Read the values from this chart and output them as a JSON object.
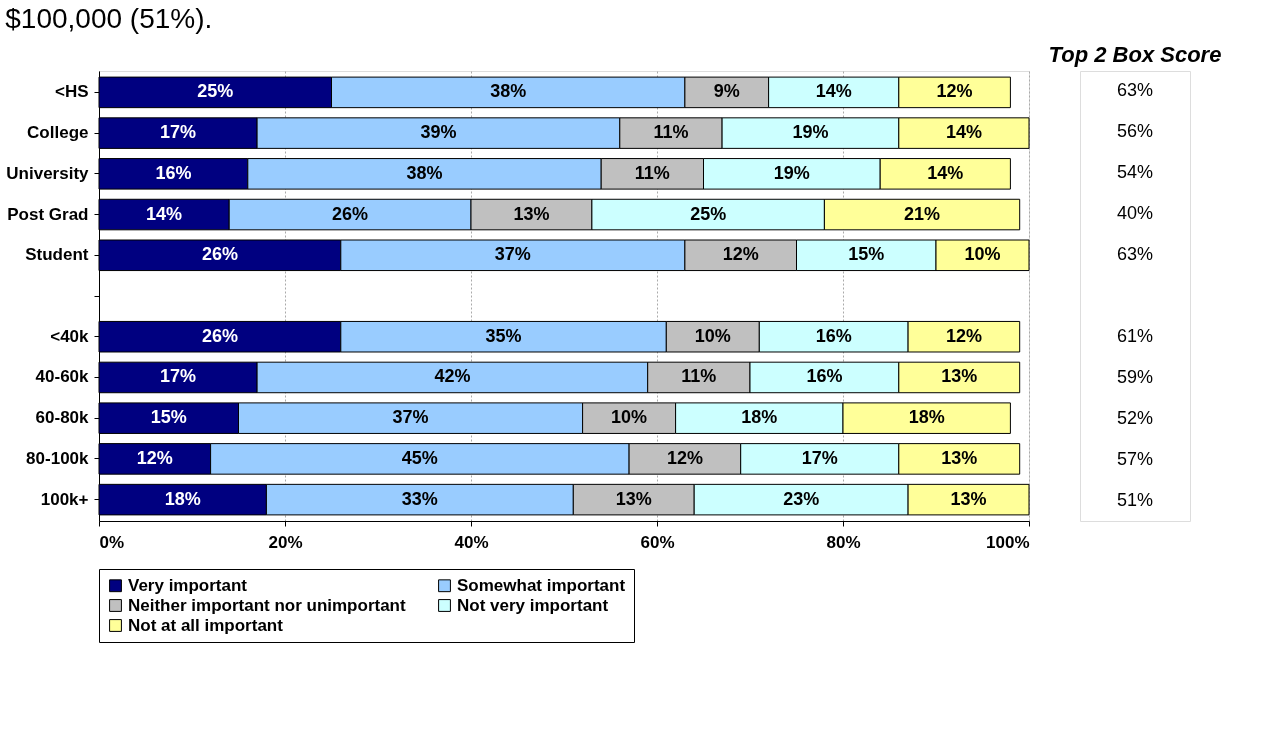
{
  "chart_data": {
    "type": "bar",
    "orientation": "horizontal",
    "stacked": true,
    "categories": [
      "<HS",
      "College",
      "University",
      "Post Grad",
      "Student",
      null,
      "<40k",
      "40-60k",
      "60-80k",
      "80-100k",
      "100k+"
    ],
    "series": [
      {
        "name": "Very important",
        "color": "#000080",
        "values": [
          25,
          17,
          16,
          14,
          26,
          null,
          26,
          17,
          15,
          12,
          18
        ],
        "value_labels": [
          "25%",
          "17%",
          "16%",
          "14%",
          "26%",
          null,
          "26%",
          "17%",
          "15%",
          "12%",
          "18%"
        ]
      },
      {
        "name": "Somewhat important",
        "color": "#99ccff",
        "values": [
          38,
          39,
          38,
          26,
          37,
          null,
          35,
          42,
          37,
          45,
          33
        ],
        "value_labels": [
          "38%",
          "39%",
          "38%",
          "26%",
          "37%",
          null,
          "35%",
          "42%",
          "37%",
          "45%",
          "33%"
        ]
      },
      {
        "name": "Neither important nor unimportant",
        "color": "#c0c0c0",
        "values": [
          9,
          11,
          11,
          13,
          12,
          null,
          10,
          11,
          10,
          12,
          13
        ],
        "value_labels": [
          "9%",
          "11%",
          "11%",
          "13%",
          "12%",
          null,
          "10%",
          "11%",
          "10%",
          "12%",
          "13%"
        ]
      },
      {
        "name": "Not very important",
        "color": "#ccffff",
        "values": [
          14,
          19,
          19,
          25,
          15,
          null,
          16,
          16,
          18,
          17,
          23
        ],
        "value_labels": [
          "14%",
          "19%",
          "19%",
          "25%",
          "15%",
          null,
          "16%",
          "16%",
          "18%",
          "17%",
          "23%"
        ]
      },
      {
        "name": "Not at all important",
        "color": "#ffff99",
        "values": [
          12,
          14,
          14,
          21,
          10,
          null,
          12,
          13,
          18,
          13,
          13
        ],
        "value_labels": [
          "12%",
          "14%",
          "14%",
          "21%",
          "10%",
          null,
          "12%",
          "13%",
          "18%",
          "13%",
          "13%"
        ]
      }
    ],
    "xlim": [
      0,
      100
    ],
    "xticks": [
      {
        "value": 0,
        "label": "0%"
      },
      {
        "value": 20,
        "label": "20%"
      },
      {
        "value": 40,
        "label": "40%"
      },
      {
        "value": 60,
        "label": "60%"
      },
      {
        "value": 80,
        "label": "80%"
      },
      {
        "value": 100,
        "label": "100%"
      }
    ],
    "grid": "x",
    "legend": "bottom",
    "annotations": [
      "$100,000 (51%).",
      "Top 2 Box Score",
      "63%",
      "56%",
      "54%",
      "40%",
      "63%",
      "61%",
      "59%",
      "52%",
      "57%",
      "51%"
    ]
  }
}
